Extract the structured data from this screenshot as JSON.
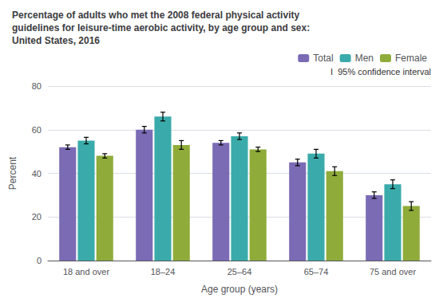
{
  "chart_data": {
    "type": "bar",
    "title": "Percentage of adults who met the 2008 federal physical activity\nguidelines for leisure-time aerobic activity, by age group and sex:\nUnited States, 2016",
    "categories": [
      "18 and over",
      "18–24",
      "25–64",
      "65–74",
      "75 and over"
    ],
    "series": [
      {
        "name": "Total",
        "color": "#7b6bb5",
        "values": [
          52,
          60,
          54,
          45,
          30
        ],
        "errors": [
          1.0,
          1.5,
          1.0,
          1.5,
          1.5
        ]
      },
      {
        "name": "Men",
        "color": "#3aabaa",
        "values": [
          55,
          66,
          57,
          49,
          35
        ],
        "errors": [
          1.5,
          2.0,
          1.5,
          2.0,
          2.0
        ]
      },
      {
        "name": "Female",
        "color": "#8fac3a",
        "values": [
          48,
          53,
          51,
          41,
          25
        ],
        "errors": [
          1.0,
          2.0,
          1.0,
          2.0,
          2.0
        ]
      }
    ],
    "xlabel": "Age group (years)",
    "ylabel": "Percent",
    "annotation": "I  95% confidence interval",
    "ylim": [
      0,
      80
    ],
    "yticks": [
      0,
      20,
      40,
      60,
      80
    ],
    "grid": true,
    "legend": "upper right"
  }
}
